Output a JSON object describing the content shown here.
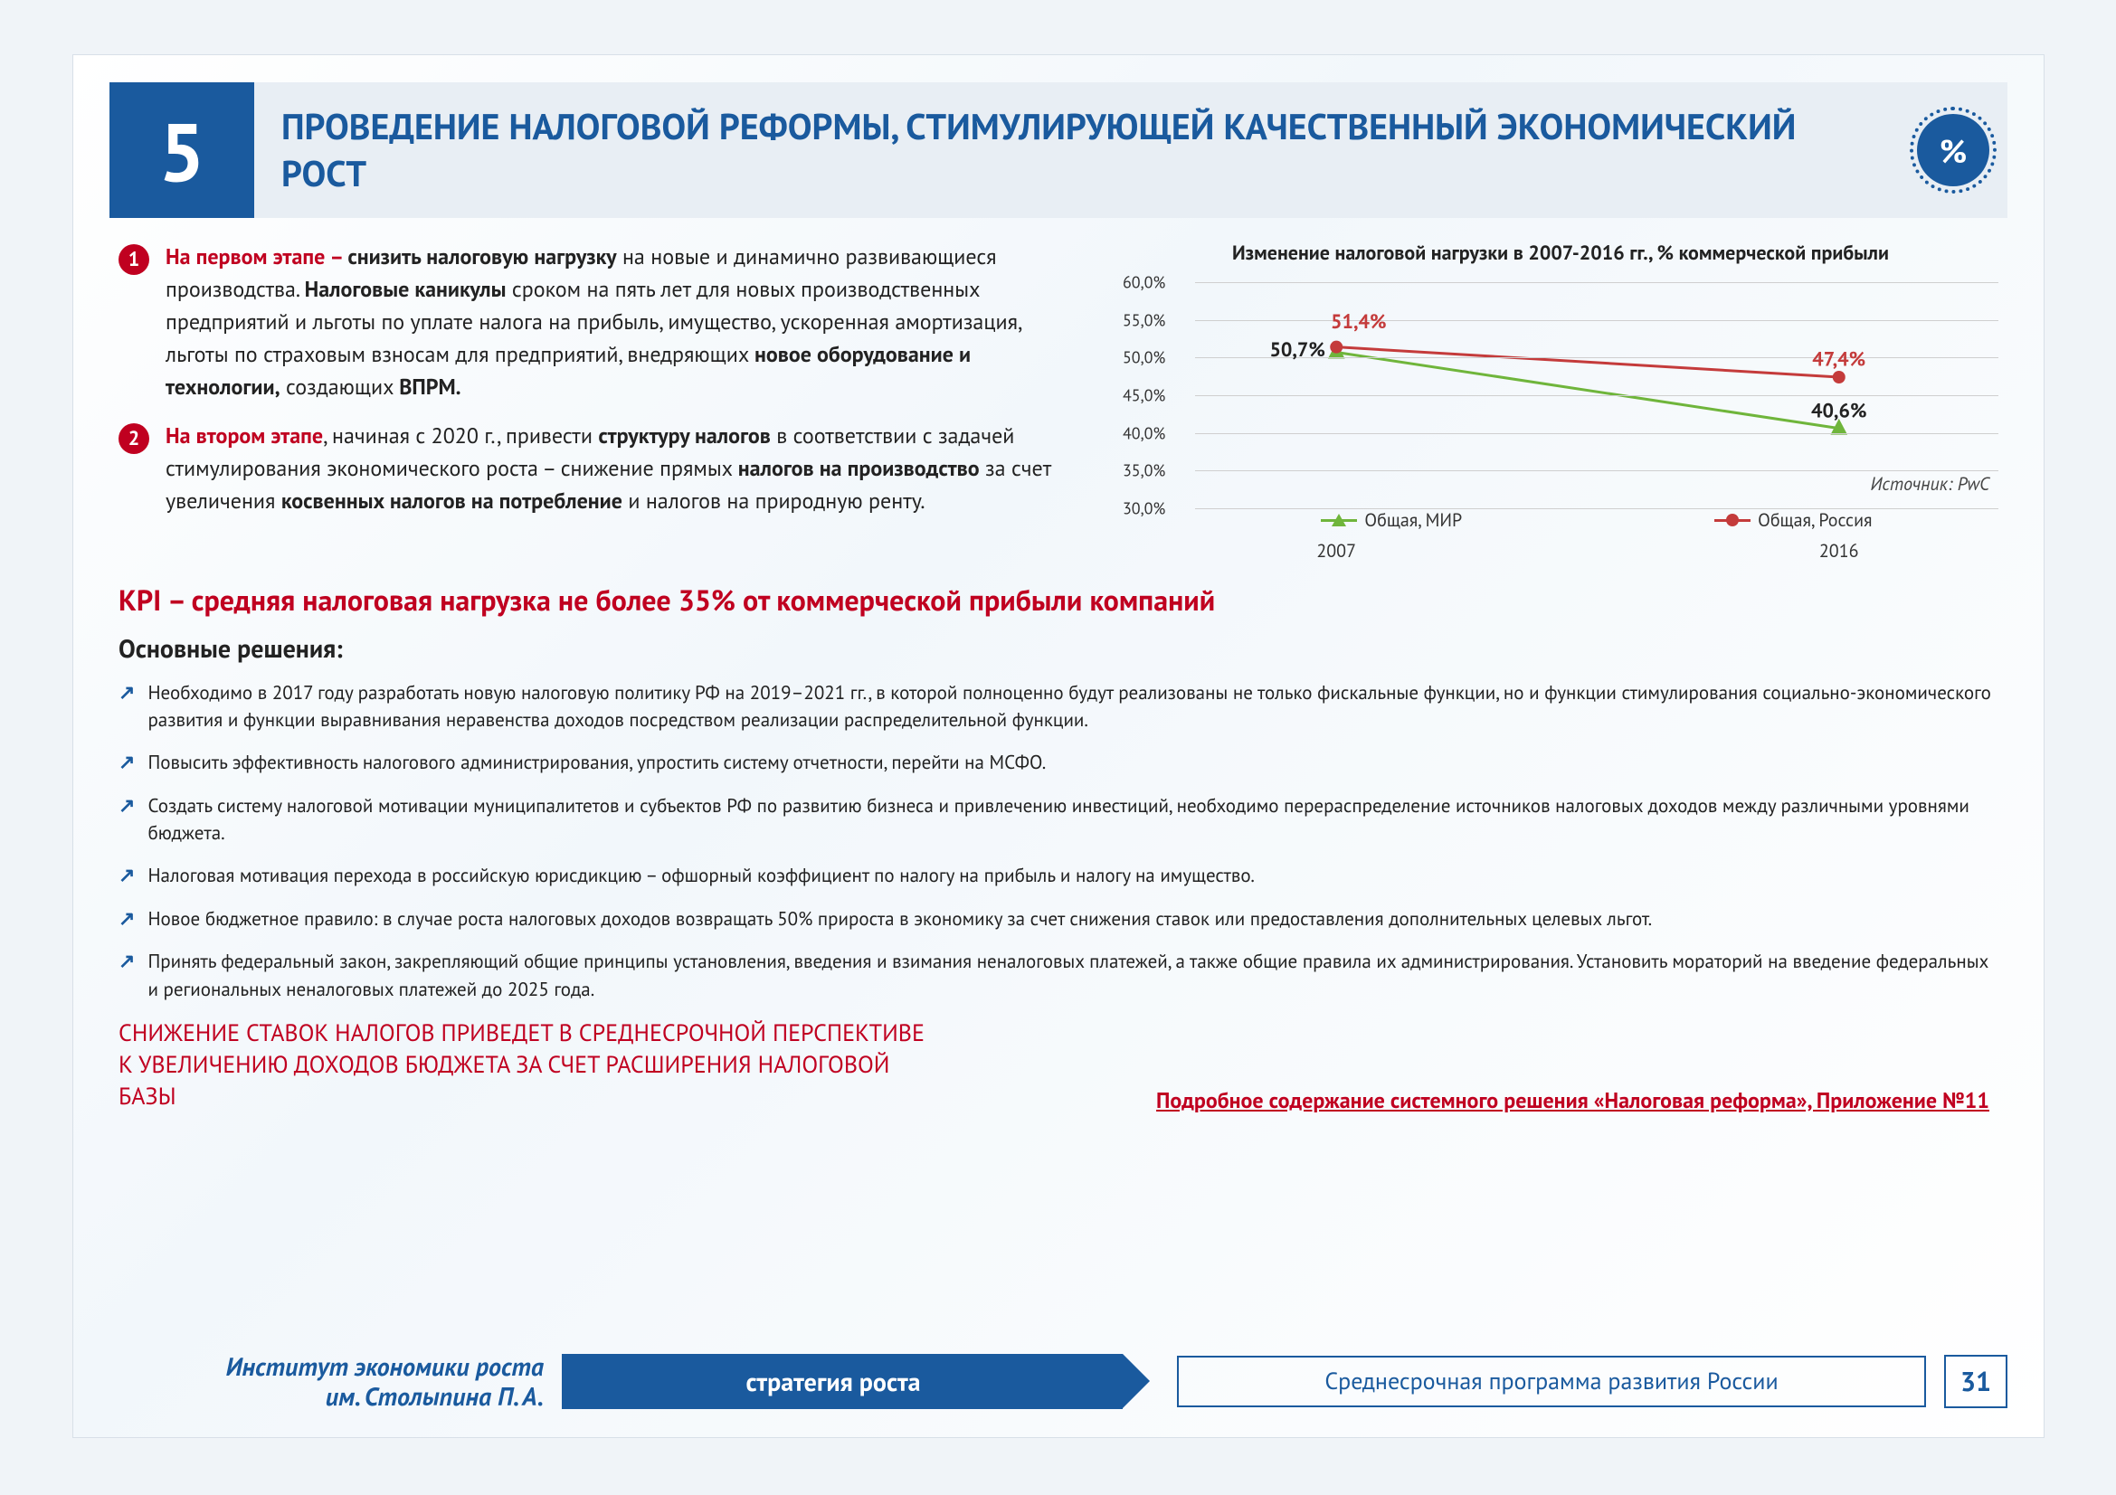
{
  "header": {
    "number": "5",
    "title": "ПРОВЕДЕНИЕ НАЛОГОВОЙ РЕФОРМЫ, СТИМУЛИРУЮЩЕЙ КАЧЕСТВЕННЫЙ ЭКОНОМИЧЕСКИЙ РОСТ",
    "badge_symbol": "%"
  },
  "stages": [
    {
      "num": "1",
      "lead": "На первом этапе – ",
      "html": "<b>снизить налоговую нагрузку</b> на новые и динамично развивающиеся производства. <b>Налоговые каникулы</b> сроком на пять лет для новых производственных предприятий и льготы по уплате налога на прибыль, имущество, ускоренная амортизация, льготы по страховым взносам для предприятий, внедряющих <b>новое оборудование и технологии,</b> создающих <b>ВПРМ.</b>"
    },
    {
      "num": "2",
      "lead": "На втором этапе",
      "html": ", начиная с 2020 г., привести <b>структуру налогов</b> в соответствии с задачей стимулирования экономического роста – снижение прямых <b>налогов на производство</b> за счет увеличения <b>косвенных налогов на потребление</b> и налогов на природную ренту."
    }
  ],
  "kpi": "KPI – средняя налоговая нагрузка не более 35% от коммерческой прибыли компаний",
  "solutions_title": "Основные решения:",
  "solutions": [
    "Необходимо в 2017 году разработать новую налоговую политику РФ на 2019–2021 гг., в которой полноценно будут реализованы не только фискальные функции, но и функции стимулирования социально-экономического развития и функции выравнивания неравенства доходов посредством реализации распределительной функции.",
    "Повысить эффективность налогового администрирования, упростить систему отчетности, перейти на МСФО.",
    "Создать систему налоговой мотивации муниципалитетов и субъектов РФ по развитию бизнеса и привлечению инвестиций, необходимо перераспределение источников налоговых доходов между различными уровнями бюджета.",
    "Налоговая мотивация перехода в российскую юрисдикцию – офшорный коэффициент по налогу на прибыль и налогу на имущество.",
    "Новое бюджетное правило: в случае роста налоговых доходов возвращать 50% прироста в экономику за счет снижения ставок или предоставления дополнительных целевых льгот.",
    "Принять федеральный закон, закрепляющий общие принципы установления, введения и взимания неналоговых платежей, а также общие правила их администрирования. Установить мораторий на введение федеральных и региональных неналоговых платежей до 2025 года."
  ],
  "conclusion": "СНИЖЕНИЕ СТАВОК НАЛОГОВ ПРИВЕДЕТ В СРЕДНЕСРОЧНОЙ ПЕРСПЕКТИВЕ К УВЕЛИЧЕНИЮ ДОХОДОВ БЮДЖЕТА ЗА СЧЕТ РАСШИРЕНИЯ НАЛОГОВОЙ БАЗЫ",
  "appendix": "Подробное содержание системного решения «Налоговая реформа», Приложение №11",
  "chart": {
    "type": "line",
    "title": "Изменение налоговой нагрузки в 2007-2016 гг., % коммерческой прибыли",
    "source": "Источник: PwC",
    "x_categories": [
      "2007",
      "2016"
    ],
    "ylim": [
      30,
      60
    ],
    "ytick_step": 5,
    "yticks": [
      "30,0%",
      "35,0%",
      "40,0%",
      "45,0%",
      "50,0%",
      "55,0%",
      "60,0%"
    ],
    "grid_color": "#cfcfcf",
    "background_color": "#ffffff",
    "series": [
      {
        "name": "Общая, МИР",
        "color": "#6fb53b",
        "marker": "triangle",
        "values": [
          50.7,
          40.6
        ],
        "labels": [
          "50,7%",
          "40,6%"
        ],
        "label_color": "#222222"
      },
      {
        "name": "Общая, Россия",
        "color": "#c43b3b",
        "marker": "circle",
        "values": [
          51.4,
          47.4
        ],
        "labels": [
          "51,4%",
          "47,4%"
        ],
        "label_color": "#c43b3b"
      }
    ],
    "title_fontsize": 22,
    "tick_fontsize": 18,
    "line_width": 3,
    "marker_size": 14
  },
  "footer": {
    "institute_line1": "Институт экономики роста",
    "institute_line2": "им. Столыпина П. А.",
    "banner": "стратегия роста",
    "subtitle": "Среднесрочная программа развития России",
    "page": "31"
  },
  "colors": {
    "primary_blue": "#1a5a9e",
    "accent_red": "#c00020",
    "header_bg": "#e8eef4"
  }
}
